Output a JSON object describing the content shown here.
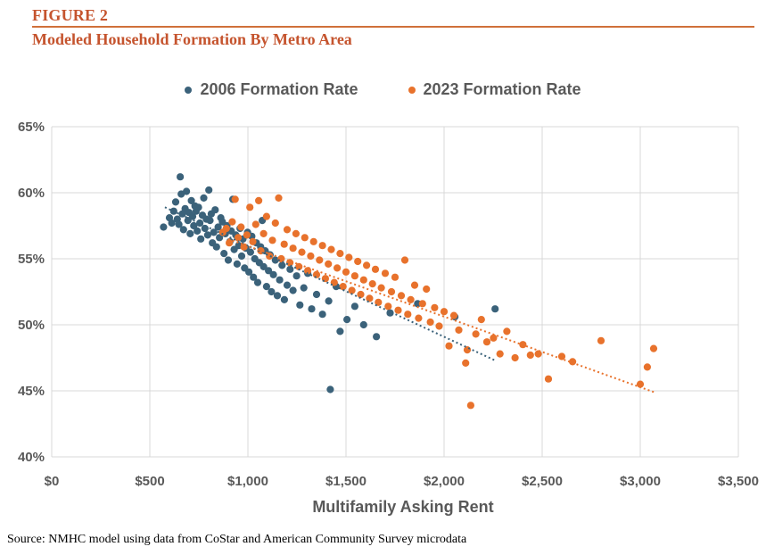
{
  "header": {
    "figure_label": "FIGURE 2",
    "title": "Modeled Household Formation By Metro Area"
  },
  "source": "Source: NMHC model using data from CoStar and American Community Survey microdata",
  "chart_data": {
    "type": "scatter",
    "title": "Modeled Household Formation By Metro Area",
    "xlabel": "Multifamily Asking Rent",
    "ylabel": "",
    "xlim": [
      0,
      3500
    ],
    "ylim": [
      40,
      65
    ],
    "grid": true,
    "legend_position": "top-center",
    "colors": {
      "title_text": "#C5542E",
      "rule": "#D0703A",
      "axis_text": "#595959",
      "gridline": "#D9D9D9"
    },
    "x_ticks": [
      {
        "label": "$0",
        "value": 0
      },
      {
        "label": "$500",
        "value": 500
      },
      {
        "label": "$1,000",
        "value": 1000
      },
      {
        "label": "$1,500",
        "value": 1500
      },
      {
        "label": "$2,000",
        "value": 2000
      },
      {
        "label": "$2,500",
        "value": 2500
      },
      {
        "label": "$3,000",
        "value": 3000
      },
      {
        "label": "$3,500",
        "value": 3500
      }
    ],
    "y_ticks": [
      {
        "label": "40%",
        "value": 40
      },
      {
        "label": "45%",
        "value": 45
      },
      {
        "label": "50%",
        "value": 50
      },
      {
        "label": "55%",
        "value": 55
      },
      {
        "label": "60%",
        "value": 60
      },
      {
        "label": "65%",
        "value": 65
      }
    ],
    "series": [
      {
        "name": "2006 Formation Rate",
        "color": "#3B627A",
        "trendline": {
          "style": "dotted",
          "points": [
            [
              577,
              58.9
            ],
            [
              2260,
              47.3
            ]
          ]
        },
        "points": [
          [
            570,
            57.4
          ],
          [
            600,
            58.1
          ],
          [
            612,
            57.7
          ],
          [
            622,
            58.6
          ],
          [
            632,
            59.3
          ],
          [
            640,
            58.0
          ],
          [
            648,
            57.6
          ],
          [
            655,
            61.2
          ],
          [
            660,
            59.9
          ],
          [
            666,
            58.4
          ],
          [
            672,
            57.2
          ],
          [
            680,
            58.8
          ],
          [
            687,
            60.1
          ],
          [
            694,
            57.9
          ],
          [
            700,
            58.5
          ],
          [
            706,
            56.9
          ],
          [
            712,
            59.4
          ],
          [
            718,
            58.2
          ],
          [
            724,
            57.5
          ],
          [
            730,
            59.0
          ],
          [
            736,
            58.6
          ],
          [
            742,
            57.1
          ],
          [
            748,
            58.9
          ],
          [
            755,
            57.7
          ],
          [
            760,
            56.5
          ],
          [
            768,
            58.3
          ],
          [
            775,
            59.6
          ],
          [
            781,
            57.3
          ],
          [
            788,
            58.0
          ],
          [
            795,
            56.8
          ],
          [
            801,
            60.2
          ],
          [
            807,
            57.9
          ],
          [
            813,
            58.4
          ],
          [
            819,
            56.2
          ],
          [
            826,
            57.0
          ],
          [
            833,
            58.7
          ],
          [
            840,
            55.9
          ],
          [
            848,
            57.4
          ],
          [
            855,
            56.6
          ],
          [
            862,
            58.1
          ],
          [
            870,
            57.8
          ],
          [
            878,
            55.4
          ],
          [
            885,
            56.9
          ],
          [
            893,
            57.5
          ],
          [
            900,
            54.9
          ],
          [
            908,
            56.3
          ],
          [
            915,
            57.1
          ],
          [
            923,
            59.5
          ],
          [
            930,
            55.7
          ],
          [
            938,
            56.8
          ],
          [
            945,
            54.6
          ],
          [
            953,
            56.0
          ],
          [
            960,
            57.3
          ],
          [
            968,
            55.2
          ],
          [
            975,
            56.5
          ],
          [
            983,
            54.3
          ],
          [
            990,
            55.8
          ],
          [
            998,
            57.0
          ],
          [
            1005,
            54.0
          ],
          [
            1013,
            55.5
          ],
          [
            1020,
            56.7
          ],
          [
            1028,
            53.6
          ],
          [
            1035,
            55.0
          ],
          [
            1043,
            56.2
          ],
          [
            1050,
            53.2
          ],
          [
            1058,
            54.7
          ],
          [
            1065,
            55.9
          ],
          [
            1073,
            57.9
          ],
          [
            1080,
            54.4
          ],
          [
            1088,
            55.6
          ],
          [
            1095,
            52.9
          ],
          [
            1105,
            54.1
          ],
          [
            1113,
            55.3
          ],
          [
            1120,
            52.5
          ],
          [
            1130,
            53.8
          ],
          [
            1140,
            54.9
          ],
          [
            1150,
            52.2
          ],
          [
            1162,
            53.4
          ],
          [
            1174,
            54.5
          ],
          [
            1186,
            51.9
          ],
          [
            1200,
            53.0
          ],
          [
            1215,
            54.2
          ],
          [
            1230,
            52.6
          ],
          [
            1248,
            53.7
          ],
          [
            1265,
            51.5
          ],
          [
            1285,
            52.8
          ],
          [
            1305,
            53.9
          ],
          [
            1325,
            51.2
          ],
          [
            1350,
            52.3
          ],
          [
            1380,
            50.8
          ],
          [
            1412,
            51.8
          ],
          [
            1420,
            45.1
          ],
          [
            1450,
            52.9
          ],
          [
            1470,
            49.5
          ],
          [
            1505,
            50.4
          ],
          [
            1545,
            51.4
          ],
          [
            1590,
            50.0
          ],
          [
            1655,
            49.1
          ],
          [
            1725,
            50.9
          ],
          [
            1865,
            51.6
          ],
          [
            2055,
            50.6
          ],
          [
            2260,
            51.2
          ]
        ]
      },
      {
        "name": "2023 Formation Rate",
        "color": "#E8722C",
        "trendline": {
          "style": "dotted",
          "points": [
            [
              900,
              56.5
            ],
            [
              3070,
              44.9
            ]
          ]
        },
        "points": [
          [
            872,
            57.0
          ],
          [
            890,
            57.3
          ],
          [
            905,
            56.2
          ],
          [
            920,
            57.8
          ],
          [
            935,
            59.5
          ],
          [
            950,
            56.6
          ],
          [
            965,
            57.4
          ],
          [
            980,
            55.9
          ],
          [
            995,
            56.8
          ],
          [
            1010,
            58.9
          ],
          [
            1025,
            56.3
          ],
          [
            1040,
            57.6
          ],
          [
            1055,
            59.4
          ],
          [
            1066,
            55.6
          ],
          [
            1080,
            56.9
          ],
          [
            1095,
            58.2
          ],
          [
            1110,
            55.2
          ],
          [
            1125,
            56.4
          ],
          [
            1140,
            57.7
          ],
          [
            1157,
            59.6
          ],
          [
            1170,
            55.0
          ],
          [
            1185,
            56.1
          ],
          [
            1200,
            57.2
          ],
          [
            1214,
            54.7
          ],
          [
            1230,
            55.8
          ],
          [
            1245,
            56.9
          ],
          [
            1260,
            54.4
          ],
          [
            1275,
            55.5
          ],
          [
            1290,
            56.6
          ],
          [
            1305,
            54.1
          ],
          [
            1320,
            55.2
          ],
          [
            1335,
            56.3
          ],
          [
            1350,
            53.8
          ],
          [
            1365,
            54.9
          ],
          [
            1380,
            56.0
          ],
          [
            1395,
            53.5
          ],
          [
            1410,
            54.6
          ],
          [
            1425,
            55.7
          ],
          [
            1440,
            53.2
          ],
          [
            1455,
            54.3
          ],
          [
            1470,
            55.4
          ],
          [
            1485,
            52.9
          ],
          [
            1500,
            54.0
          ],
          [
            1515,
            55.1
          ],
          [
            1530,
            52.6
          ],
          [
            1545,
            53.7
          ],
          [
            1560,
            54.8
          ],
          [
            1575,
            52.3
          ],
          [
            1590,
            53.4
          ],
          [
            1605,
            54.5
          ],
          [
            1620,
            52.0
          ],
          [
            1635,
            53.1
          ],
          [
            1650,
            54.2
          ],
          [
            1665,
            51.7
          ],
          [
            1680,
            52.8
          ],
          [
            1700,
            53.9
          ],
          [
            1715,
            51.4
          ],
          [
            1732,
            52.5
          ],
          [
            1750,
            53.6
          ],
          [
            1766,
            51.1
          ],
          [
            1782,
            52.2
          ],
          [
            1800,
            54.9
          ],
          [
            1815,
            50.8
          ],
          [
            1830,
            51.9
          ],
          [
            1850,
            53.0
          ],
          [
            1870,
            50.5
          ],
          [
            1890,
            51.6
          ],
          [
            1910,
            52.7
          ],
          [
            1930,
            50.2
          ],
          [
            1952,
            51.3
          ],
          [
            1975,
            49.9
          ],
          [
            2000,
            51.0
          ],
          [
            2025,
            48.4
          ],
          [
            2050,
            50.7
          ],
          [
            2075,
            49.6
          ],
          [
            2110,
            47.1
          ],
          [
            2118,
            48.1
          ],
          [
            2136,
            43.9
          ],
          [
            2162,
            49.3
          ],
          [
            2190,
            50.4
          ],
          [
            2218,
            48.7
          ],
          [
            2252,
            49.0
          ],
          [
            2285,
            47.8
          ],
          [
            2320,
            49.5
          ],
          [
            2362,
            47.5
          ],
          [
            2402,
            48.5
          ],
          [
            2440,
            47.7
          ],
          [
            2480,
            47.8
          ],
          [
            2532,
            45.9
          ],
          [
            2600,
            47.6
          ],
          [
            2655,
            47.2
          ],
          [
            2800,
            48.8
          ],
          [
            3000,
            45.5
          ],
          [
            3036,
            46.8
          ],
          [
            3068,
            48.2
          ]
        ]
      }
    ]
  }
}
